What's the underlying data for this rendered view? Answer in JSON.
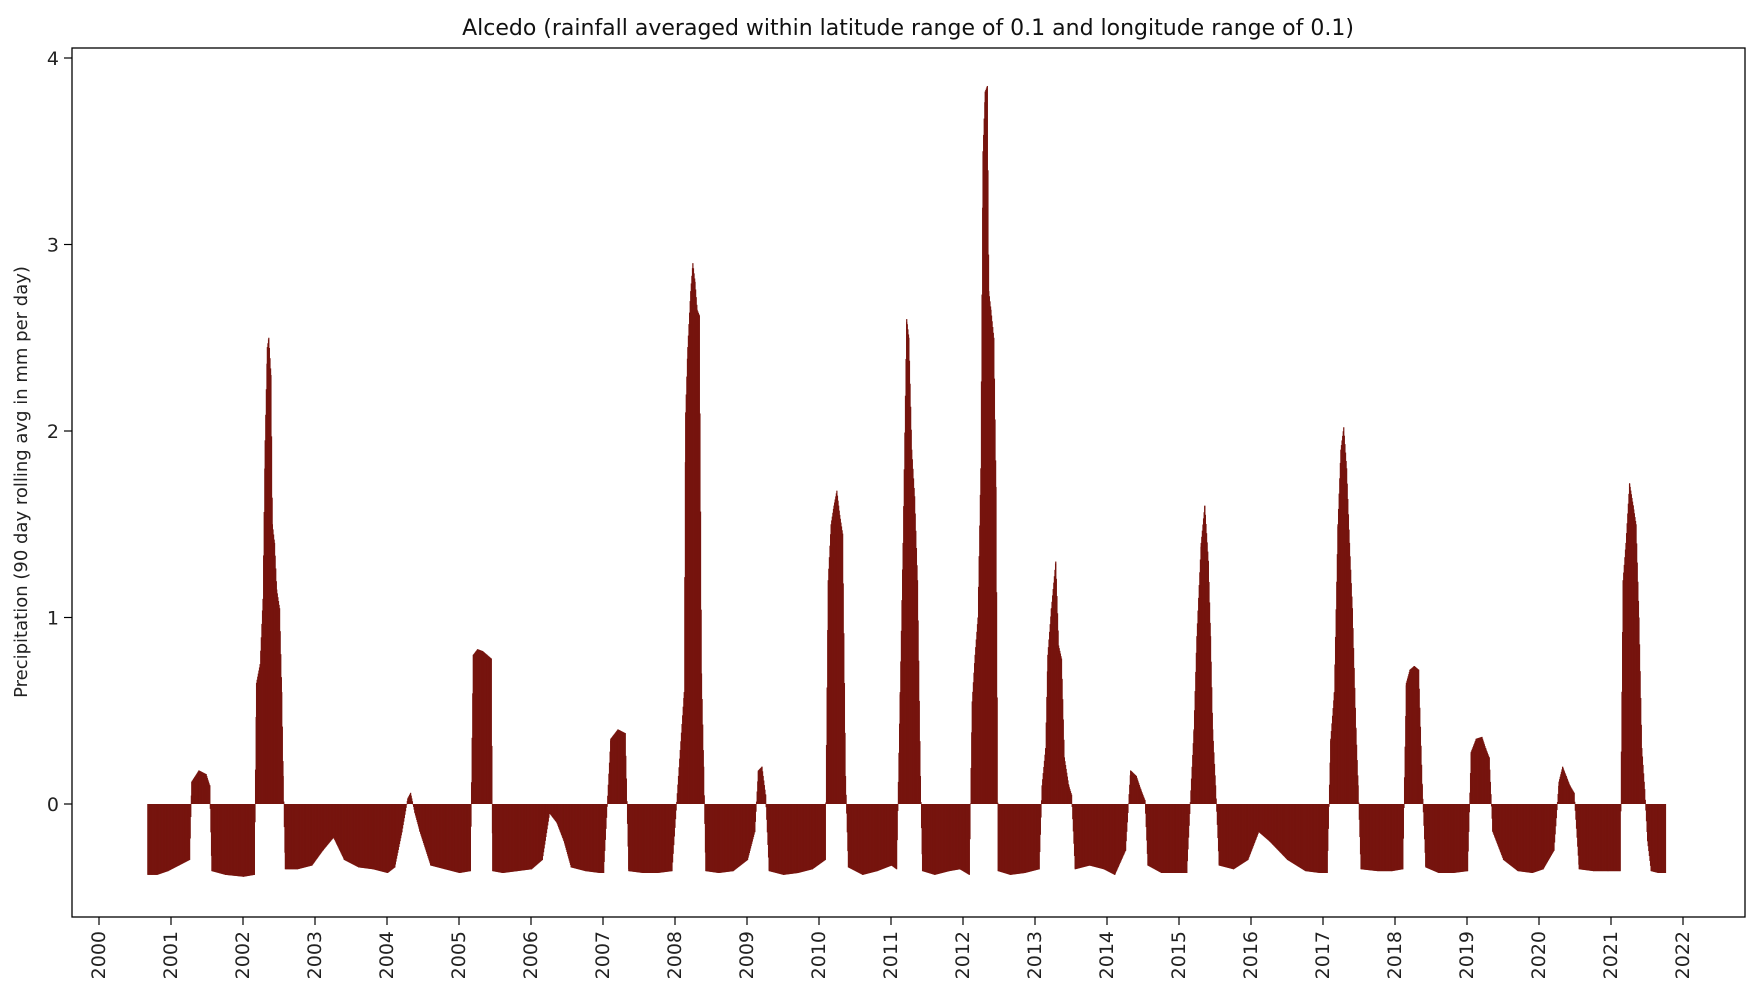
{
  "chart_data": {
    "type": "bar",
    "title": "Alcedo (rainfall averaged within latitude range of 0.1 and longitude range of 0.1)",
    "xlabel": "",
    "ylabel": "Precipitation (90 day rolling avg in mm per day)",
    "x_unit": "year",
    "xlim": [
      2000.0,
      2022.0
    ],
    "ylim": [
      -0.6,
      4.05
    ],
    "xticks": [
      "2000",
      "2001",
      "2002",
      "2003",
      "2004",
      "2005",
      "2006",
      "2007",
      "2008",
      "2009",
      "2010",
      "2011",
      "2012",
      "2013",
      "2014",
      "2015",
      "2016",
      "2017",
      "2018",
      "2019",
      "2020",
      "2021",
      "2022"
    ],
    "yticks": [
      "0",
      "1",
      "2",
      "3",
      "4"
    ],
    "grid": false,
    "legend": "none",
    "bar_color": "#76140e",
    "series": [
      {
        "values": [
          [
            2000.67,
            -0.38
          ],
          [
            2000.8,
            -0.38
          ],
          [
            2000.95,
            -0.36
          ],
          [
            2001.1,
            -0.33
          ],
          [
            2001.25,
            -0.3
          ],
          [
            2001.28,
            0.12
          ],
          [
            2001.38,
            0.18
          ],
          [
            2001.48,
            0.16
          ],
          [
            2001.53,
            0.1
          ],
          [
            2001.56,
            -0.36
          ],
          [
            2001.75,
            -0.38
          ],
          [
            2002.0,
            -0.39
          ],
          [
            2002.15,
            -0.38
          ],
          [
            2002.18,
            0.65
          ],
          [
            2002.23,
            0.75
          ],
          [
            2002.27,
            1.1
          ],
          [
            2002.3,
            1.95
          ],
          [
            2002.33,
            2.45
          ],
          [
            2002.35,
            2.5
          ],
          [
            2002.38,
            2.3
          ],
          [
            2002.4,
            1.5
          ],
          [
            2002.43,
            1.4
          ],
          [
            2002.46,
            1.15
          ],
          [
            2002.5,
            1.05
          ],
          [
            2002.53,
            0.6
          ],
          [
            2002.55,
            0.15
          ],
          [
            2002.58,
            -0.35
          ],
          [
            2002.75,
            -0.35
          ],
          [
            2002.95,
            -0.33
          ],
          [
            2003.1,
            -0.25
          ],
          [
            2003.25,
            -0.18
          ],
          [
            2003.4,
            -0.3
          ],
          [
            2003.6,
            -0.34
          ],
          [
            2003.8,
            -0.35
          ],
          [
            2004.0,
            -0.37
          ],
          [
            2004.1,
            -0.34
          ],
          [
            2004.2,
            -0.15
          ],
          [
            2004.28,
            0.03
          ],
          [
            2004.32,
            0.06
          ],
          [
            2004.38,
            -0.05
          ],
          [
            2004.45,
            -0.15
          ],
          [
            2004.6,
            -0.33
          ],
          [
            2004.8,
            -0.35
          ],
          [
            2005.0,
            -0.37
          ],
          [
            2005.15,
            -0.36
          ],
          [
            2005.19,
            0.8
          ],
          [
            2005.25,
            0.83
          ],
          [
            2005.32,
            0.82
          ],
          [
            2005.38,
            0.8
          ],
          [
            2005.44,
            0.78
          ],
          [
            2005.46,
            -0.36
          ],
          [
            2005.6,
            -0.37
          ],
          [
            2005.8,
            -0.36
          ],
          [
            2006.0,
            -0.35
          ],
          [
            2006.15,
            -0.3
          ],
          [
            2006.25,
            -0.05
          ],
          [
            2006.35,
            -0.1
          ],
          [
            2006.45,
            -0.2
          ],
          [
            2006.55,
            -0.34
          ],
          [
            2006.75,
            -0.36
          ],
          [
            2006.95,
            -0.37
          ],
          [
            2007.0,
            -0.37
          ],
          [
            2007.1,
            0.35
          ],
          [
            2007.2,
            0.4
          ],
          [
            2007.3,
            0.38
          ],
          [
            2007.35,
            -0.36
          ],
          [
            2007.55,
            -0.37
          ],
          [
            2007.75,
            -0.37
          ],
          [
            2007.95,
            -0.36
          ],
          [
            2008.12,
            0.6
          ],
          [
            2008.14,
            2.1
          ],
          [
            2008.17,
            2.45
          ],
          [
            2008.21,
            2.75
          ],
          [
            2008.24,
            2.9
          ],
          [
            2008.27,
            2.8
          ],
          [
            2008.3,
            2.65
          ],
          [
            2008.33,
            2.62
          ],
          [
            2008.36,
            0.7
          ],
          [
            2008.39,
            0.2
          ],
          [
            2008.42,
            -0.36
          ],
          [
            2008.6,
            -0.37
          ],
          [
            2008.8,
            -0.36
          ],
          [
            2009.0,
            -0.3
          ],
          [
            2009.1,
            -0.15
          ],
          [
            2009.15,
            0.18
          ],
          [
            2009.2,
            0.2
          ],
          [
            2009.25,
            0.05
          ],
          [
            2009.3,
            -0.36
          ],
          [
            2009.5,
            -0.38
          ],
          [
            2009.7,
            -0.37
          ],
          [
            2009.9,
            -0.35
          ],
          [
            2010.08,
            -0.3
          ],
          [
            2010.12,
            1.2
          ],
          [
            2010.16,
            1.5
          ],
          [
            2010.2,
            1.6
          ],
          [
            2010.24,
            1.68
          ],
          [
            2010.28,
            1.55
          ],
          [
            2010.32,
            1.45
          ],
          [
            2010.36,
            0.15
          ],
          [
            2010.4,
            -0.34
          ],
          [
            2010.6,
            -0.38
          ],
          [
            2010.8,
            -0.36
          ],
          [
            2011.0,
            -0.33
          ],
          [
            2011.07,
            -0.35
          ],
          [
            2011.12,
            0.6
          ],
          [
            2011.16,
            1.4
          ],
          [
            2011.21,
            2.6
          ],
          [
            2011.24,
            2.5
          ],
          [
            2011.28,
            1.9
          ],
          [
            2011.32,
            1.65
          ],
          [
            2011.36,
            1.2
          ],
          [
            2011.4,
            0.15
          ],
          [
            2011.43,
            -0.36
          ],
          [
            2011.6,
            -0.38
          ],
          [
            2011.8,
            -0.36
          ],
          [
            2011.95,
            -0.35
          ],
          [
            2012.08,
            -0.38
          ],
          [
            2012.12,
            0.55
          ],
          [
            2012.16,
            0.8
          ],
          [
            2012.2,
            1.0
          ],
          [
            2012.24,
            1.8
          ],
          [
            2012.27,
            3.5
          ],
          [
            2012.3,
            3.82
          ],
          [
            2012.33,
            3.85
          ],
          [
            2012.35,
            2.75
          ],
          [
            2012.38,
            2.65
          ],
          [
            2012.42,
            2.5
          ],
          [
            2012.45,
            1.7
          ],
          [
            2012.48,
            -0.36
          ],
          [
            2012.65,
            -0.38
          ],
          [
            2012.85,
            -0.37
          ],
          [
            2013.05,
            -0.35
          ],
          [
            2013.09,
            0.1
          ],
          [
            2013.14,
            0.3
          ],
          [
            2013.17,
            0.8
          ],
          [
            2013.22,
            1.05
          ],
          [
            2013.28,
            1.3
          ],
          [
            2013.32,
            0.85
          ],
          [
            2013.36,
            0.78
          ],
          [
            2013.4,
            0.25
          ],
          [
            2013.46,
            0.1
          ],
          [
            2013.5,
            0.05
          ],
          [
            2013.55,
            -0.35
          ],
          [
            2013.75,
            -0.33
          ],
          [
            2013.95,
            -0.35
          ],
          [
            2014.1,
            -0.38
          ],
          [
            2014.25,
            -0.25
          ],
          [
            2014.32,
            0.18
          ],
          [
            2014.4,
            0.15
          ],
          [
            2014.46,
            0.08
          ],
          [
            2014.52,
            0.02
          ],
          [
            2014.56,
            -0.33
          ],
          [
            2014.75,
            -0.37
          ],
          [
            2014.95,
            -0.37
          ],
          [
            2015.1,
            -0.37
          ],
          [
            2015.2,
            0.4
          ],
          [
            2015.24,
            0.9
          ],
          [
            2015.3,
            1.4
          ],
          [
            2015.35,
            1.6
          ],
          [
            2015.4,
            1.3
          ],
          [
            2015.43,
            0.9
          ],
          [
            2015.46,
            0.4
          ],
          [
            2015.5,
            0.1
          ],
          [
            2015.55,
            -0.33
          ],
          [
            2015.75,
            -0.35
          ],
          [
            2015.95,
            -0.3
          ],
          [
            2016.1,
            -0.15
          ],
          [
            2016.25,
            -0.2
          ],
          [
            2016.5,
            -0.3
          ],
          [
            2016.75,
            -0.36
          ],
          [
            2016.95,
            -0.37
          ],
          [
            2017.05,
            -0.37
          ],
          [
            2017.1,
            0.35
          ],
          [
            2017.15,
            0.6
          ],
          [
            2017.2,
            1.5
          ],
          [
            2017.24,
            1.9
          ],
          [
            2017.28,
            2.02
          ],
          [
            2017.32,
            1.8
          ],
          [
            2017.36,
            1.4
          ],
          [
            2017.4,
            1.05
          ],
          [
            2017.45,
            0.4
          ],
          [
            2017.48,
            0.1
          ],
          [
            2017.52,
            -0.35
          ],
          [
            2017.75,
            -0.36
          ],
          [
            2017.95,
            -0.36
          ],
          [
            2018.1,
            -0.35
          ],
          [
            2018.15,
            0.65
          ],
          [
            2018.2,
            0.72
          ],
          [
            2018.26,
            0.74
          ],
          [
            2018.32,
            0.72
          ],
          [
            2018.37,
            0.1
          ],
          [
            2018.42,
            -0.34
          ],
          [
            2018.6,
            -0.37
          ],
          [
            2018.8,
            -0.37
          ],
          [
            2019.0,
            -0.36
          ],
          [
            2019.05,
            0.28
          ],
          [
            2019.12,
            0.35
          ],
          [
            2019.2,
            0.36
          ],
          [
            2019.25,
            0.3
          ],
          [
            2019.3,
            0.25
          ],
          [
            2019.35,
            -0.15
          ],
          [
            2019.5,
            -0.3
          ],
          [
            2019.7,
            -0.36
          ],
          [
            2019.9,
            -0.37
          ],
          [
            2020.05,
            -0.35
          ],
          [
            2020.2,
            -0.25
          ],
          [
            2020.27,
            0.12
          ],
          [
            2020.32,
            0.2
          ],
          [
            2020.37,
            0.15
          ],
          [
            2020.42,
            0.1
          ],
          [
            2020.48,
            0.06
          ],
          [
            2020.55,
            -0.35
          ],
          [
            2020.75,
            -0.36
          ],
          [
            2020.95,
            -0.36
          ],
          [
            2021.12,
            -0.36
          ],
          [
            2021.16,
            1.2
          ],
          [
            2021.2,
            1.4
          ],
          [
            2021.25,
            1.72
          ],
          [
            2021.3,
            1.6
          ],
          [
            2021.34,
            1.5
          ],
          [
            2021.38,
            1.0
          ],
          [
            2021.42,
            0.3
          ],
          [
            2021.46,
            0.08
          ],
          [
            2021.5,
            -0.2
          ],
          [
            2021.55,
            -0.36
          ],
          [
            2021.65,
            -0.37
          ],
          [
            2021.75,
            -0.37
          ]
        ]
      }
    ]
  }
}
